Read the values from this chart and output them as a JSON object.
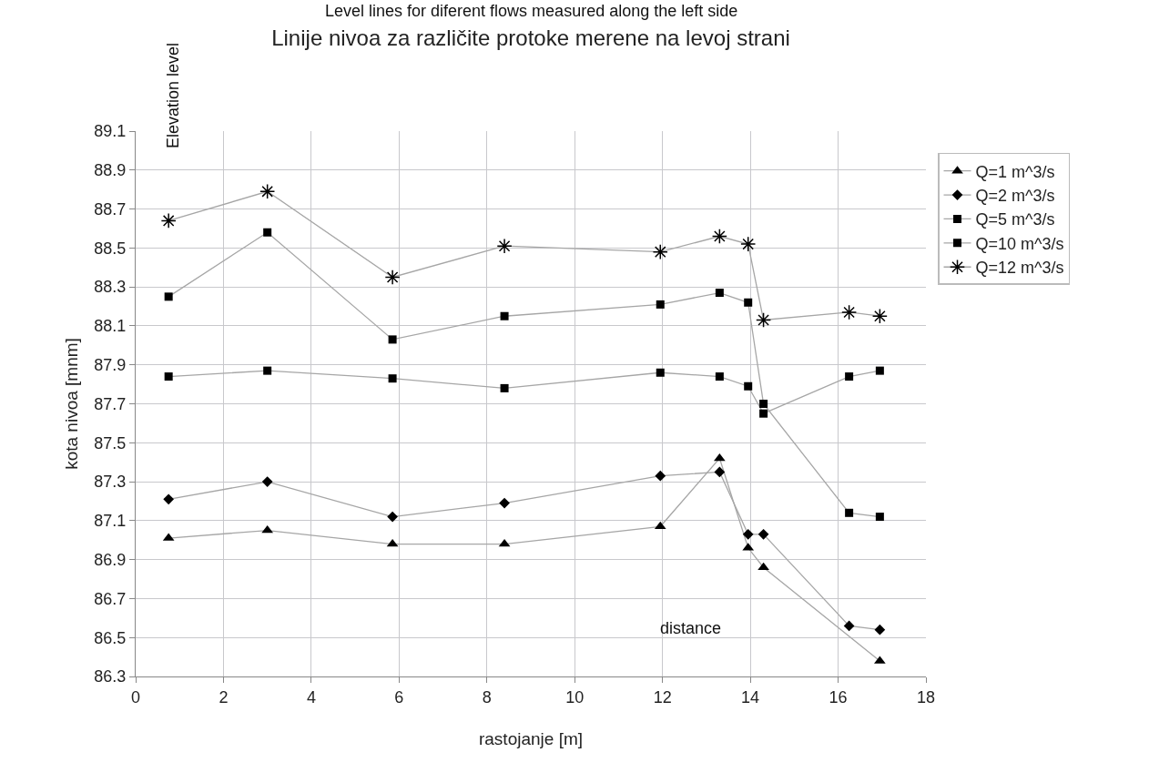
{
  "chart_data": {
    "type": "line",
    "title": "Linije nivoa za različite protoke merene na levoj strani",
    "xlabel": "rastojanje [m]",
    "ylabel": "kota nivoa [mnm]",
    "annotations": [
      "Level lines for diferent flows measured along the left side",
      "Elevation level",
      "distance"
    ],
    "x": [
      0.75,
      3.0,
      5.85,
      8.4,
      11.95,
      13.3,
      13.95,
      14.3,
      16.25,
      16.95
    ],
    "series": [
      {
        "name": "Q=1 m^3/s",
        "color": "#000000",
        "marker": "triangle",
        "x": [
          0.75,
          3.0,
          5.85,
          8.4,
          11.95,
          13.3,
          13.95,
          14.3,
          16.95
        ],
        "values": [
          87.01,
          87.05,
          86.98,
          86.98,
          87.07,
          87.42,
          86.96,
          86.86,
          86.38
        ]
      },
      {
        "name": "Q=2 m^3/s",
        "color": "#000000",
        "marker": "diamond",
        "values": [
          87.21,
          87.3,
          87.12,
          87.19,
          87.33,
          87.35,
          87.03,
          87.03,
          86.56,
          86.54
        ]
      },
      {
        "name": "Q=5 m^3/s",
        "color": "#000000",
        "marker": "square",
        "values": [
          87.84,
          87.87,
          87.83,
          87.78,
          87.86,
          87.84,
          87.79,
          87.65,
          87.84,
          87.87
        ]
      },
      {
        "name": "Q=10 m^3/s",
        "color": "#000000",
        "marker": "square",
        "values": [
          88.25,
          88.58,
          88.03,
          88.15,
          88.21,
          88.27,
          88.22,
          87.7,
          87.14,
          87.12
        ]
      },
      {
        "name": "Q=12 m^3/s",
        "color": "#000000",
        "marker": "cross",
        "values": [
          88.64,
          88.79,
          88.35,
          88.51,
          88.48,
          88.56,
          88.52,
          88.13,
          88.17,
          88.15
        ]
      }
    ],
    "xlim": [
      0,
      18
    ],
    "xticks": [
      0,
      2,
      4,
      6,
      8,
      10,
      12,
      14,
      16,
      18
    ],
    "ylim": [
      86.3,
      89.1
    ],
    "yticks": [
      86.3,
      86.5,
      86.7,
      86.9,
      87.1,
      87.3,
      87.5,
      87.7,
      87.9,
      88.1,
      88.3,
      88.5,
      88.7,
      88.9,
      89.1
    ],
    "grid": true,
    "legend": "right",
    "line_style": "solid"
  }
}
